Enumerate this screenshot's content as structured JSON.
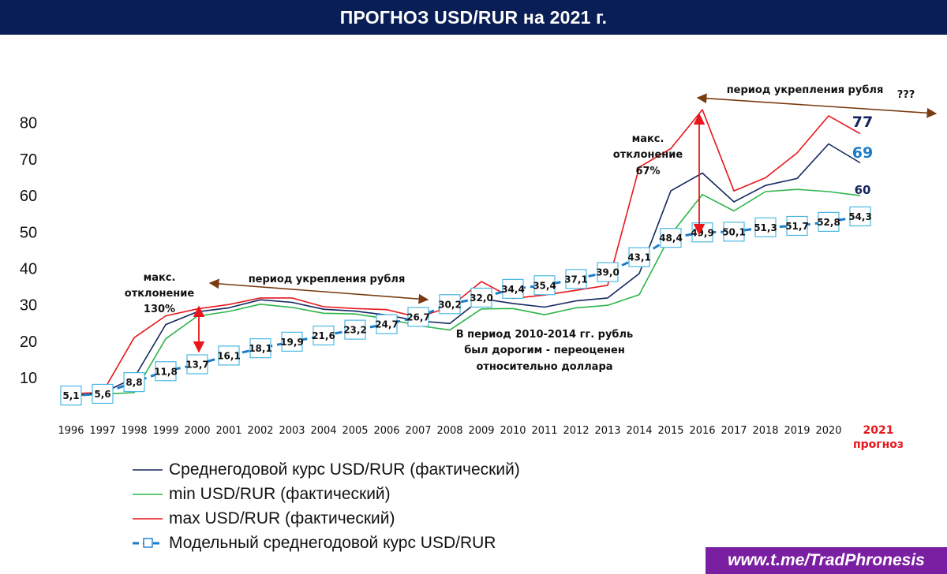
{
  "header": {
    "title": "ПРОГНОЗ USD/RUR на 2021 г."
  },
  "footer": {
    "link": "www.t.me/TradPhronesis"
  },
  "colors": {
    "avg": "#14275e",
    "min": "#2db54a",
    "max": "#e8161b",
    "model": "#1b7cc9",
    "title_bg": "#0a1e56",
    "brown": "#7a3b10"
  },
  "chart_data": {
    "type": "line",
    "title": "",
    "ylim": [
      0,
      85
    ],
    "yticks": [
      10,
      20,
      30,
      40,
      50,
      60,
      70,
      80
    ],
    "x": [
      "1996",
      "1997",
      "1998",
      "1999",
      "2000",
      "2001",
      "2002",
      "2003",
      "2004",
      "2005",
      "2006",
      "2007",
      "2008",
      "2009",
      "2010",
      "2011",
      "2012",
      "2013",
      "2014",
      "2015",
      "2016",
      "2017",
      "2018",
      "2019",
      "2020",
      "2021"
    ],
    "x_last_sub": "прогноз",
    "series": [
      {
        "name": "Среднегодовой курс USD/RUR (фактический)",
        "color": "#14275e",
        "values": [
          5.1,
          5.8,
          10.0,
          24.6,
          28.1,
          29.2,
          31.4,
          30.7,
          28.8,
          28.3,
          27.2,
          25.6,
          24.9,
          31.7,
          30.4,
          29.4,
          31.1,
          31.9,
          38.6,
          61.3,
          66.2,
          58.3,
          62.8,
          64.7,
          74.2,
          69.0
        ]
      },
      {
        "name": "min USD/RUR (фактический)",
        "color": "#2db54a",
        "values": [
          5.0,
          5.5,
          5.9,
          20.7,
          26.9,
          28.2,
          30.2,
          29.3,
          27.7,
          27.5,
          26.2,
          24.3,
          23.1,
          28.9,
          29.0,
          27.3,
          29.2,
          29.9,
          32.8,
          49.3,
          60.3,
          55.8,
          61.1,
          61.7,
          61.1,
          60.0
        ]
      },
      {
        "name": "max USD/RUR (фактический)",
        "color": "#e8161b",
        "values": [
          5.6,
          6.0,
          21.0,
          27.0,
          28.9,
          30.1,
          31.9,
          31.9,
          29.5,
          29.0,
          28.7,
          26.6,
          29.4,
          36.4,
          31.8,
          32.7,
          34.0,
          35.4,
          67.8,
          72.9,
          83.6,
          61.3,
          64.9,
          71.7,
          81.9,
          77.0
        ]
      },
      {
        "name": "Модельный среднегодовой курс USD/RUR",
        "color": "#1b7cc9",
        "values": [
          5.1,
          5.6,
          8.8,
          11.8,
          13.7,
          16.1,
          18.1,
          19.9,
          21.6,
          23.2,
          24.7,
          26.7,
          30.2,
          32.0,
          34.4,
          35.4,
          37.1,
          39.0,
          43.1,
          48.4,
          49.9,
          50.1,
          51.3,
          51.7,
          52.8,
          54.3
        ],
        "labels": [
          "5,1",
          "5,6",
          "8,8",
          "11,8",
          "13,7",
          "16,1",
          "18,1",
          "19,9",
          "21,6",
          "23,2",
          "24,7",
          "26,7",
          "30,2",
          "32,0",
          "34,4",
          "35,4",
          "37,1",
          "39,0",
          "43,1",
          "48,4",
          "49,9",
          "50,1",
          "51,3",
          "51,7",
          "52,8",
          "54,3"
        ]
      }
    ],
    "end_labels": {
      "max": "77",
      "avg": "69",
      "min": "60"
    },
    "annotations": {
      "dev1": [
        "макс.",
        "отклонение",
        "130%"
      ],
      "dev2": [
        "макс.",
        "отклонение",
        "67%"
      ],
      "period1": "период укрепления рубля",
      "period2": "период укрепления рубля",
      "qmarks": "???",
      "note": [
        "В период 2010-2014 гг.  рубль",
        "был дорогим - переоценен",
        "относительно доллара"
      ]
    }
  }
}
